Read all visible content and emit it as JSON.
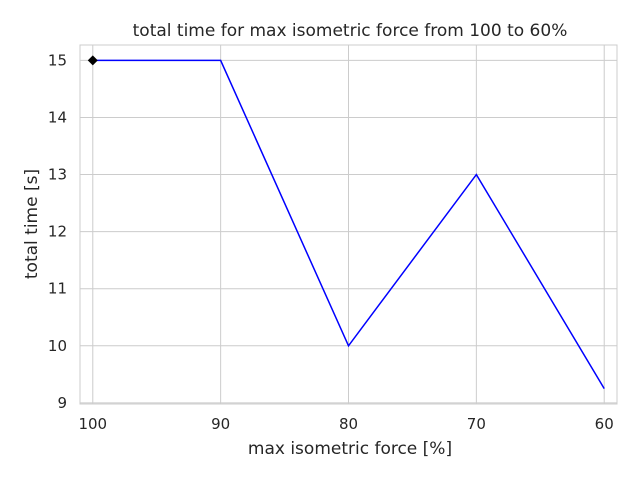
{
  "chart_data": {
    "type": "line",
    "title": "total time for max isometric force from 100 to 60%",
    "xlabel": "max isometric force [%]",
    "ylabel": "total time [s]",
    "x": [
      100,
      90,
      80,
      70,
      60
    ],
    "x_tick_labels": [
      "100",
      "90",
      "80",
      "70",
      "60"
    ],
    "x_inverted": true,
    "xlim": [
      101,
      59
    ],
    "ylim": [
      8.98,
      15.27
    ],
    "y_ticks": [
      9,
      10,
      11,
      12,
      13,
      14,
      15
    ],
    "y_tick_labels": [
      "9",
      "10",
      "11",
      "12",
      "13",
      "14",
      "15"
    ],
    "grid": true,
    "series": [
      {
        "values": [
          15,
          15,
          10,
          13,
          9.25
        ],
        "color": "#0000ff"
      }
    ],
    "marker": {
      "x": 100,
      "y": 15,
      "shape": "diamond",
      "color": "#000000"
    }
  }
}
